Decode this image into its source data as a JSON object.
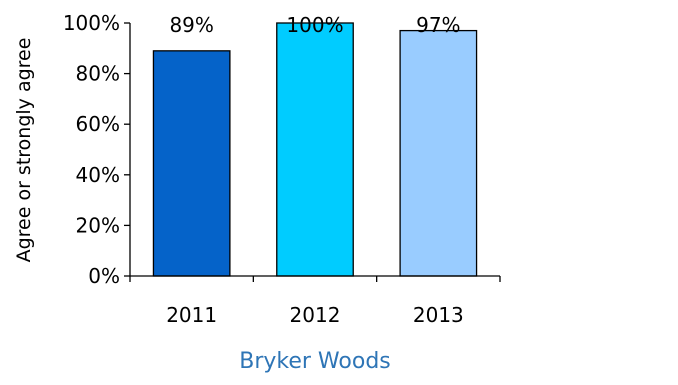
{
  "chart_data": {
    "type": "bar",
    "categories": [
      "2011",
      "2012",
      "2013"
    ],
    "values": [
      89,
      100,
      97
    ],
    "data_labels": [
      "89%",
      "100%",
      "97%"
    ],
    "colors": [
      "#0563C9",
      "#00CCFF",
      "#99CCFF"
    ],
    "title": "Bryker Woods",
    "title_color": "#2E75B6",
    "xlabel": "",
    "ylabel": "Agree or strongly agree",
    "ylim": [
      0,
      100
    ],
    "yticks": [
      0,
      20,
      40,
      60,
      80,
      100
    ],
    "ytick_labels": [
      "0%",
      "20%",
      "40%",
      "60%",
      "80%",
      "100%"
    ],
    "grid": false,
    "legend": "none"
  }
}
